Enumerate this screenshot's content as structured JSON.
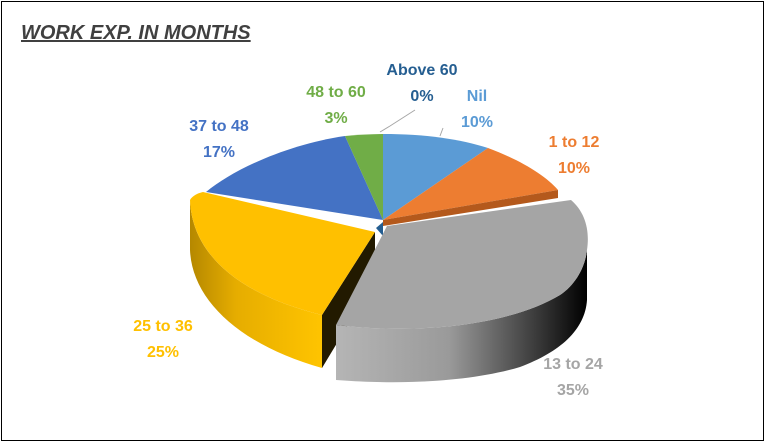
{
  "chart_data": {
    "type": "pie",
    "title": "WORK EXP. IN MONTHS",
    "slices": [
      {
        "name": "Nil",
        "value": 10,
        "label": "10%",
        "color": "#5B9BD5"
      },
      {
        "name": "1 to 12",
        "value": 10,
        "label": "10%",
        "color": "#ED7D31"
      },
      {
        "name": "13 to 24",
        "value": 35,
        "label": "35%",
        "color": "#A5A5A5"
      },
      {
        "name": "25 to 36",
        "value": 25,
        "label": "25%",
        "color": "#FFC000"
      },
      {
        "name": "37 to 48",
        "value": 17,
        "label": "17%",
        "color": "#4472C4"
      },
      {
        "name": "48 to 60",
        "value": 3,
        "label": "3%",
        "color": "#70AD47"
      },
      {
        "name": "Above 60",
        "value": 0,
        "label": "0%",
        "color": "#255E91"
      }
    ]
  }
}
